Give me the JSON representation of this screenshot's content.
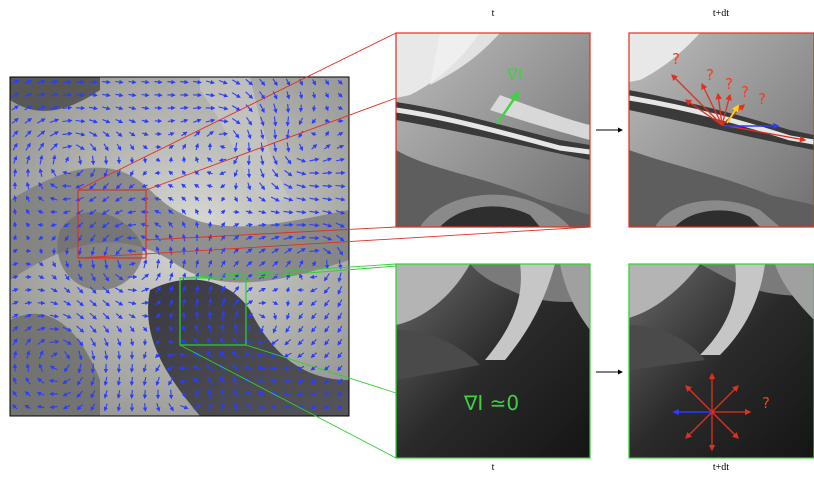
{
  "labels": {
    "top_left": "t",
    "top_right": "t+dt",
    "bottom_left": "t",
    "bottom_right": "t+dt"
  },
  "annotations": {
    "grad_top": "∇I",
    "grad_zero": "∇I ≃0",
    "q": "?"
  },
  "colors": {
    "flow_arrows": "#2a3cff",
    "red_box": "#e0301e",
    "green_box": "#2ed12e",
    "question_mark": "#ff3a1a",
    "gradient_arrow": "#3cd43c",
    "yellow_arrow": "#ffd21a"
  }
}
